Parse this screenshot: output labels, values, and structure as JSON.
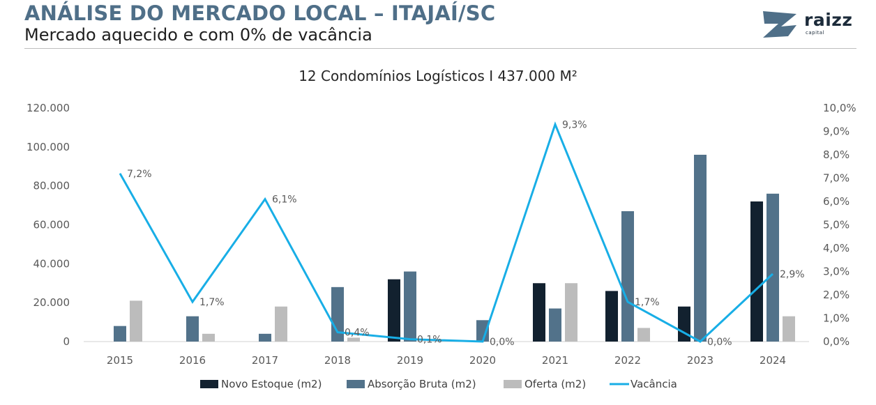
{
  "header": {
    "title": "ANÁLISE DO MERCADO LOCAL – ITAJAÍ/SC",
    "subtitle": "Mercado aquecido e com 0% de vacância"
  },
  "logo": {
    "word": "raizz",
    "sub": "capital"
  },
  "colors": {
    "novo_estoque": "#12212f",
    "absorcao": "#52728a",
    "oferta": "#bcbcbc",
    "vacancia": "#18aee6",
    "header": "#4f6f88"
  },
  "chart_data": {
    "type": "bar",
    "title": "12 Condomínios Logísticos I 437.000 M²",
    "categories": [
      "2015",
      "2016",
      "2017",
      "2018",
      "2019",
      "2020",
      "2021",
      "2022",
      "2023",
      "2024"
    ],
    "series": [
      {
        "name": "Novo Estoque (m2)",
        "type": "bar",
        "axis": "left",
        "values": [
          0,
          0,
          0,
          0,
          32000,
          0,
          30000,
          26000,
          18000,
          72000
        ]
      },
      {
        "name": "Absorção Bruta (m2)",
        "type": "bar",
        "axis": "left",
        "values": [
          8000,
          13000,
          4000,
          28000,
          36000,
          11000,
          17000,
          67000,
          96000,
          76000
        ]
      },
      {
        "name": "Oferta (m2)",
        "type": "bar",
        "axis": "left",
        "values": [
          21000,
          4000,
          18000,
          2000,
          0,
          0,
          30000,
          7000,
          0,
          13000
        ]
      },
      {
        "name": "Vacância",
        "type": "line",
        "axis": "right",
        "values": [
          7.2,
          1.7,
          6.1,
          0.4,
          0.1,
          0.0,
          9.3,
          1.7,
          0.0,
          2.9
        ],
        "labels": [
          "7,2%",
          "1,7%",
          "6,1%",
          "0,4%",
          "0,1%",
          "0,0%",
          "9,3%",
          "1,7%",
          "0,0%",
          "2,9%"
        ]
      }
    ],
    "ylim_left": [
      0,
      120000
    ],
    "yticks_left": [
      "0",
      "20.000",
      "40.000",
      "60.000",
      "80.000",
      "100.000",
      "120.000"
    ],
    "ylim_right": [
      0,
      10
    ],
    "yticks_right": [
      "0,0%",
      "1,0%",
      "2,0%",
      "3,0%",
      "4,0%",
      "5,0%",
      "6,0%",
      "7,0%",
      "8,0%",
      "9,0%",
      "10,0%"
    ],
    "grid": false,
    "legend_position": "bottom"
  }
}
